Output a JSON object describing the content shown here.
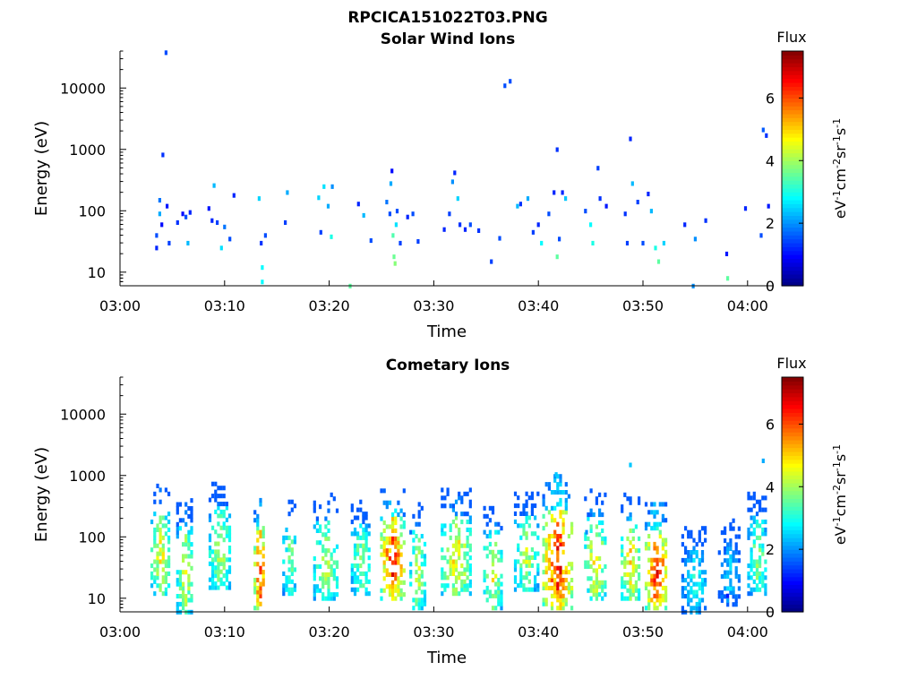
{
  "figure_title": "RPCICA151022T03.PNG",
  "colors": {
    "colormap": [
      "#00007f",
      "#0000ff",
      "#007fff",
      "#00ffff",
      "#7fff7f",
      "#ffff00",
      "#ff7f00",
      "#ff0000",
      "#7f0000"
    ],
    "axis": "#000000",
    "background": "#ffffff"
  },
  "chart_data": [
    {
      "type": "heatmap",
      "title": "Solar Wind Ions",
      "xlabel": "Time",
      "ylabel": "Energy (eV)",
      "x_ticks": [
        "03:00",
        "03:10",
        "03:20",
        "03:30",
        "03:40",
        "03:50",
        "04:00"
      ],
      "x_range_minutes": [
        0,
        62.5
      ],
      "y_scale": "log",
      "y_ticks": [
        "10",
        "100",
        "1000",
        "10000"
      ],
      "y_range": [
        6,
        40000
      ],
      "colorbar": {
        "label": "Flux",
        "unit": "eV-1cm-2sr-1s-1",
        "ticks": [
          "0",
          "2",
          "4",
          "6"
        ],
        "range": [
          0,
          7.5
        ]
      },
      "cells": [
        [
          3.5,
          25,
          1.2
        ],
        [
          3.5,
          40,
          1.5
        ],
        [
          3.8,
          150,
          1.8
        ],
        [
          3.8,
          90,
          2.2
        ],
        [
          4.0,
          60,
          1.0
        ],
        [
          4.1,
          820,
          1.3
        ],
        [
          4.4,
          38000,
          1.5
        ],
        [
          4.5,
          120,
          1.1
        ],
        [
          4.7,
          30,
          1.4
        ],
        [
          5.5,
          65,
          1.3
        ],
        [
          6.0,
          90,
          1.0
        ],
        [
          6.3,
          80,
          1.5
        ],
        [
          6.5,
          30,
          2.3
        ],
        [
          6.7,
          95,
          1.2
        ],
        [
          8.5,
          110,
          1.1
        ],
        [
          8.8,
          70,
          1.2
        ],
        [
          9.0,
          260,
          2.3
        ],
        [
          9.3,
          65,
          1.4
        ],
        [
          9.7,
          25,
          2.6
        ],
        [
          10.0,
          55,
          1.8
        ],
        [
          10.5,
          35,
          1.5
        ],
        [
          10.9,
          180,
          1.2
        ],
        [
          13.3,
          160,
          2.5
        ],
        [
          13.5,
          30,
          1.3
        ],
        [
          13.6,
          12,
          2.8
        ],
        [
          13.6,
          7,
          2.8
        ],
        [
          13.9,
          40,
          1.5
        ],
        [
          15.8,
          65,
          1.4
        ],
        [
          16.0,
          200,
          2.2
        ],
        [
          19.0,
          165,
          2.5
        ],
        [
          19.2,
          45,
          1.4
        ],
        [
          19.5,
          250,
          2.6
        ],
        [
          19.9,
          120,
          2.2
        ],
        [
          20.2,
          38,
          3.0
        ],
        [
          20.3,
          250,
          2.0
        ],
        [
          22.0,
          6,
          3.5
        ],
        [
          22.8,
          130,
          1.2
        ],
        [
          23.3,
          85,
          2.3
        ],
        [
          24.0,
          33,
          1.5
        ],
        [
          25.5,
          140,
          1.8
        ],
        [
          25.8,
          90,
          1.5
        ],
        [
          25.9,
          280,
          2.2
        ],
        [
          26.0,
          450,
          1.0
        ],
        [
          26.1,
          40,
          3.4
        ],
        [
          26.2,
          18,
          3.6
        ],
        [
          26.3,
          14,
          3.8
        ],
        [
          26.4,
          60,
          2.6
        ],
        [
          26.5,
          100,
          1.5
        ],
        [
          26.8,
          30,
          1.4
        ],
        [
          27.5,
          80,
          1.2
        ],
        [
          28.0,
          90,
          1.5
        ],
        [
          28.5,
          32,
          1.4
        ],
        [
          31.0,
          50,
          1.2
        ],
        [
          31.5,
          90,
          1.4
        ],
        [
          31.8,
          300,
          2.0
        ],
        [
          32.0,
          420,
          1.2
        ],
        [
          32.3,
          160,
          2.5
        ],
        [
          32.5,
          60,
          1.3
        ],
        [
          33.0,
          50,
          1.2
        ],
        [
          33.5,
          60,
          1.5
        ],
        [
          34.3,
          48,
          1.3
        ],
        [
          35.5,
          15,
          1.4
        ],
        [
          36.3,
          36,
          1.5
        ],
        [
          36.8,
          11000,
          1.5
        ],
        [
          37.3,
          13000,
          1.5
        ],
        [
          38.0,
          120,
          2.3
        ],
        [
          38.3,
          130,
          1.3
        ],
        [
          39.0,
          160,
          2.2
        ],
        [
          39.5,
          45,
          1.4
        ],
        [
          40.0,
          60,
          1.2
        ],
        [
          40.3,
          30,
          2.8
        ],
        [
          41.0,
          90,
          1.5
        ],
        [
          41.5,
          200,
          1.2
        ],
        [
          41.8,
          1000,
          1.3
        ],
        [
          41.8,
          18,
          3.5
        ],
        [
          42.0,
          35,
          1.5
        ],
        [
          42.3,
          200,
          1.2
        ],
        [
          42.6,
          160,
          2.4
        ],
        [
          44.5,
          100,
          1.5
        ],
        [
          45.0,
          60,
          2.8
        ],
        [
          45.2,
          30,
          3.0
        ],
        [
          45.7,
          500,
          1.4
        ],
        [
          45.9,
          160,
          1.3
        ],
        [
          46.5,
          120,
          1.1
        ],
        [
          48.3,
          90,
          1.3
        ],
        [
          48.5,
          30,
          1.4
        ],
        [
          48.8,
          1500,
          1.2
        ],
        [
          49.0,
          280,
          2.3
        ],
        [
          49.5,
          140,
          1.4
        ],
        [
          50.0,
          30,
          1.5
        ],
        [
          50.5,
          190,
          1.2
        ],
        [
          50.8,
          100,
          2.3
        ],
        [
          51.2,
          25,
          3.0
        ],
        [
          51.5,
          15,
          3.5
        ],
        [
          52.0,
          30,
          2.5
        ],
        [
          54.0,
          60,
          1.2
        ],
        [
          54.8,
          6,
          2.0
        ],
        [
          55.0,
          35,
          2.0
        ],
        [
          56.0,
          70,
          1.3
        ],
        [
          58.0,
          20,
          1.1
        ],
        [
          58.1,
          8,
          3.5
        ],
        [
          59.8,
          110,
          1.2
        ],
        [
          61.3,
          40,
          1.5
        ],
        [
          61.5,
          2100,
          1.6
        ],
        [
          61.8,
          1700,
          1.3
        ],
        [
          62.0,
          120,
          1.1
        ]
      ]
    },
    {
      "type": "heatmap",
      "title": "Cometary Ions",
      "xlabel": "Time",
      "ylabel": "Energy (eV)",
      "x_ticks": [
        "03:00",
        "03:10",
        "03:20",
        "03:30",
        "03:40",
        "03:50",
        "04:00"
      ],
      "x_range_minutes": [
        0,
        62.5
      ],
      "y_scale": "log",
      "y_ticks": [
        "10",
        "100",
        "1000",
        "10000"
      ],
      "y_range": [
        6,
        40000
      ],
      "colorbar": {
        "label": "Flux",
        "unit": "eV-1cm-2sr-1s-1",
        "ticks": [
          "0",
          "2",
          "4",
          "6"
        ],
        "range": [
          0,
          7.5
        ]
      },
      "bursts": [
        {
          "t": 3.9,
          "w": 1.7,
          "emin": 12,
          "emax": 780,
          "peak": 4.7
        },
        {
          "t": 6.3,
          "w": 1.6,
          "emin": 6,
          "emax": 420,
          "peak": 4.5
        },
        {
          "t": 9.6,
          "w": 2.0,
          "emin": 15,
          "emax": 820,
          "peak": 4.3
        },
        {
          "t": 13.4,
          "w": 1.0,
          "emin": 7,
          "emax": 400,
          "peak": 6.5
        },
        {
          "t": 16.3,
          "w": 1.3,
          "emin": 12,
          "emax": 380,
          "peak": 3.9
        },
        {
          "t": 19.8,
          "w": 2.4,
          "emin": 10,
          "emax": 540,
          "peak": 4.2
        },
        {
          "t": 23.1,
          "w": 1.8,
          "emin": 12,
          "emax": 420,
          "peak": 4.0
        },
        {
          "t": 26.1,
          "w": 2.2,
          "emin": 10,
          "emax": 580,
          "peak": 6.4
        },
        {
          "t": 28.5,
          "w": 1.4,
          "emin": 7,
          "emax": 350,
          "peak": 4.3
        },
        {
          "t": 32.2,
          "w": 2.8,
          "emin": 12,
          "emax": 620,
          "peak": 4.9
        },
        {
          "t": 35.7,
          "w": 1.7,
          "emin": 7,
          "emax": 320,
          "peak": 4.6
        },
        {
          "t": 38.9,
          "w": 2.2,
          "emin": 14,
          "emax": 560,
          "peak": 4.2
        },
        {
          "t": 41.9,
          "w": 2.8,
          "emin": 7,
          "emax": 1000,
          "peak": 6.6
        },
        {
          "t": 45.5,
          "w": 2.0,
          "emin": 10,
          "emax": 600,
          "peak": 4.9
        },
        {
          "t": 48.9,
          "w": 1.8,
          "emin": 10,
          "emax": 500,
          "peak": 5.0
        },
        {
          "t": 51.3,
          "w": 2.0,
          "emin": 7,
          "emax": 350,
          "peak": 6.6
        },
        {
          "t": 55.0,
          "w": 2.4,
          "emin": 6,
          "emax": 150,
          "peak": 3.0
        },
        {
          "t": 58.3,
          "w": 2.0,
          "emin": 8,
          "emax": 200,
          "peak": 2.6
        },
        {
          "t": 61.0,
          "w": 1.8,
          "emin": 12,
          "emax": 550,
          "peak": 3.9
        }
      ],
      "cells": [
        [
          58.1,
          11,
          1.1
        ],
        [
          61.5,
          1750,
          2.2
        ],
        [
          48.8,
          1500,
          2.4
        ],
        [
          41.7,
          1050,
          2.4
        ],
        [
          44.6,
          120,
          2.0
        ]
      ]
    }
  ]
}
